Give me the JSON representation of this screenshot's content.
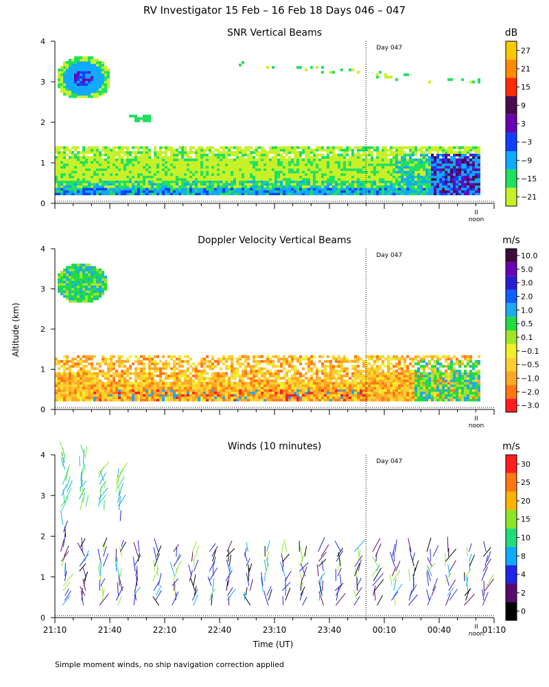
{
  "title": "RV Investigator  15 Feb – 16 Feb 18 Days 046 – 047",
  "ylabel": "Altitude (km)",
  "xlabel": "Time (UT)",
  "footnote": "Simple moment winds, no ship navigation correction applied",
  "day_marker_label": "Day 047",
  "noon_label": "noon",
  "noon_tick_label": "II",
  "time_ticks": [
    "21:10",
    "21:40",
    "22:10",
    "22:40",
    "23:10",
    "23:40",
    "00:10",
    "00:40",
    "01:10"
  ],
  "chart_data": [
    {
      "type": "heatmap",
      "title": "SNR Vertical Beams",
      "units": "dB",
      "ylim": [
        0,
        4
      ],
      "y_ticks": [
        "0",
        "1",
        "2",
        "3",
        "4"
      ],
      "xlim_minutes_after_2110": [
        0,
        240
      ],
      "day_boundary_minutes": 170,
      "colorbar_labels": [
        "27",
        "21",
        "15",
        "9",
        "3",
        "−3",
        "−9",
        "−15",
        "−21"
      ],
      "colorbar_colors": [
        "#ffc800",
        "#ff8c00",
        "#ff2a00",
        "#4b0a50",
        "#6a00b4",
        "#1040ff",
        "#10aaff",
        "#20e060",
        "#c8f028"
      ],
      "regions": [
        {
          "t": [
            0,
            30
          ],
          "alt": [
            2.5,
            3.6
          ],
          "level": "−9 to 3"
        },
        {
          "t": [
            0,
            232
          ],
          "alt": [
            0.2,
            1.4
          ],
          "level": "−21 to 3"
        },
        {
          "t": [
            210,
            232
          ],
          "alt": [
            0.3,
            1.2
          ],
          "level": "−3 to 9"
        },
        {
          "t": [
            100,
            232
          ],
          "alt": [
            2.9,
            3.4
          ],
          "level": "−21 to −15"
        }
      ]
    },
    {
      "type": "heatmap",
      "title": "Doppler Velocity Vertical Beams",
      "units": "m/s",
      "ylim": [
        0,
        4
      ],
      "y_ticks": [
        "0",
        "1",
        "2",
        "3",
        "4"
      ],
      "xlim_minutes_after_2110": [
        0,
        240
      ],
      "day_boundary_minutes": 170,
      "colorbar_labels": [
        "10.0",
        "5.0",
        "3.0",
        "2.0",
        "1.0",
        "0.5",
        "0.1",
        "−0.1",
        "−0.5",
        "−1.0",
        "−2.0",
        "−3.0"
      ],
      "colorbar_colors": [
        "#3c0a3c",
        "#6a00b4",
        "#2a1ed2",
        "#1060ff",
        "#20a8f0",
        "#20dc40",
        "#a0e628",
        "#f0f028",
        "#ffd030",
        "#ffa828",
        "#ff7814",
        "#ff1e1e"
      ],
      "regions": [
        {
          "t": [
            0,
            28
          ],
          "alt": [
            2.6,
            3.6
          ],
          "level": "0.1 to 1.0"
        },
        {
          "t": [
            0,
            232
          ],
          "alt": [
            0.2,
            1.3
          ],
          "level": "−2.0 to 0.1"
        },
        {
          "t": [
            200,
            232
          ],
          "alt": [
            0.3,
            1.3
          ],
          "level": "0.1 to 2.0"
        }
      ]
    },
    {
      "type": "scatter",
      "title": "Winds (10 minutes)",
      "units": "m/s",
      "ylim": [
        0,
        4
      ],
      "y_ticks": [
        "0",
        "1",
        "2",
        "3",
        "4"
      ],
      "xlim_minutes_after_2110": [
        0,
        240
      ],
      "day_boundary_minutes": 170,
      "colorbar_labels": [
        "30",
        "25",
        "20",
        "15",
        "10",
        "8",
        "4",
        "2",
        "0"
      ],
      "colorbar_colors": [
        "#ff1e1e",
        "#ff7814",
        "#ffb400",
        "#8ce628",
        "#20dc78",
        "#10aaff",
        "#1e28e6",
        "#5a0a6e",
        "#000000"
      ],
      "profiles_minutes": [
        5,
        15,
        25,
        35,
        45,
        55,
        65,
        75,
        85,
        95,
        105,
        115,
        125,
        135,
        145,
        155,
        165,
        175,
        185,
        195,
        205,
        215,
        225,
        235
      ]
    }
  ]
}
